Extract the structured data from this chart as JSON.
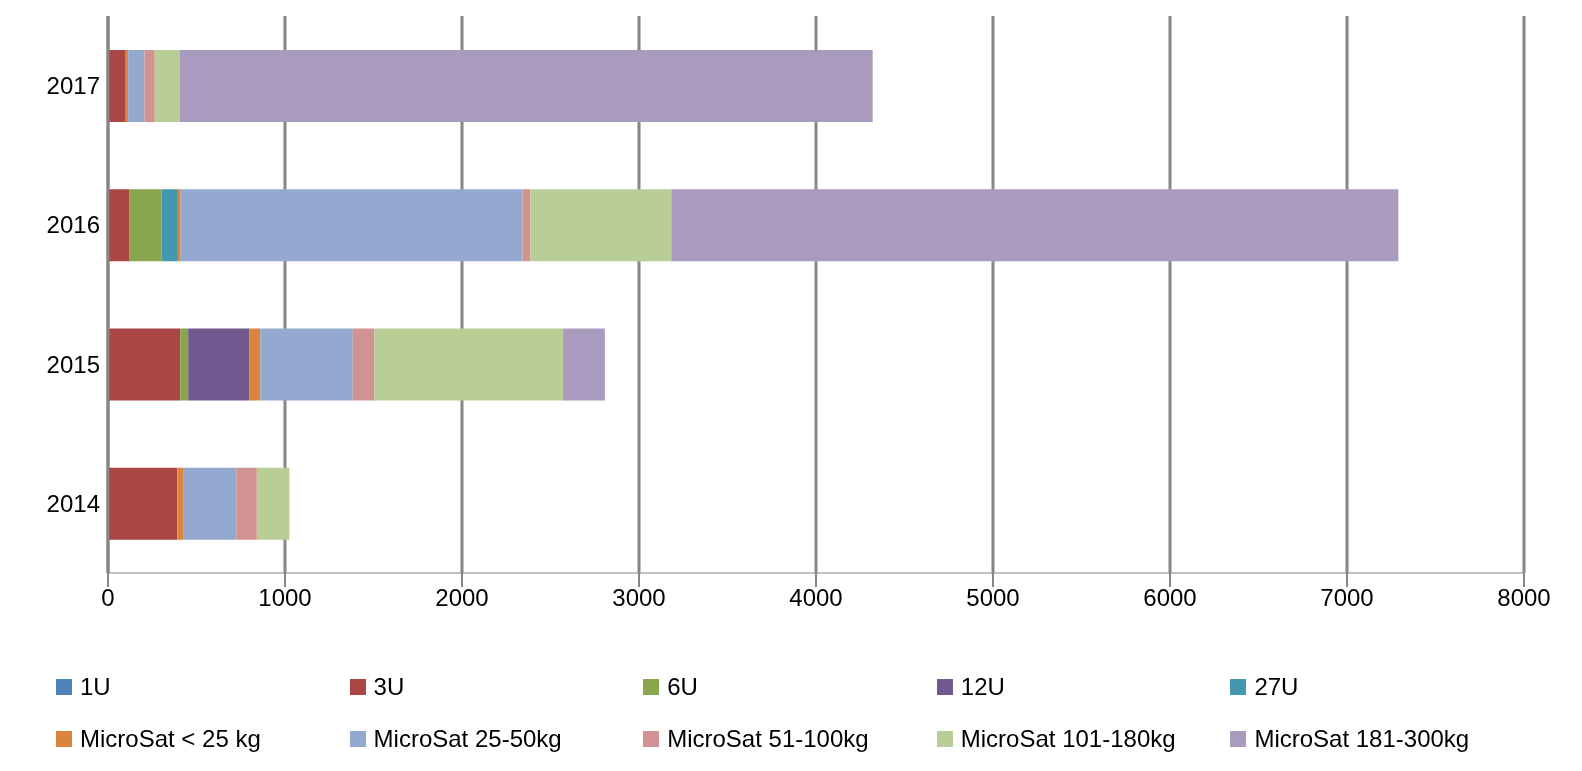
{
  "chart_data": {
    "type": "bar",
    "orientation": "horizontal",
    "stacked": true,
    "categories": [
      "2017",
      "2016",
      "2015",
      "2014"
    ],
    "series": [
      {
        "name": "1U",
        "color": "#4f81bd",
        "values": [
          null,
          null,
          null,
          null
        ]
      },
      {
        "name": "3U",
        "color": "#aa4643",
        "values": [
          100,
          122,
          408,
          392
        ]
      },
      {
        "name": "6U",
        "color": "#89a54e",
        "values": [
          null,
          181,
          45,
          null
        ]
      },
      {
        "name": "12U",
        "color": "#71588f",
        "values": [
          null,
          null,
          347,
          null
        ]
      },
      {
        "name": "27U",
        "color": "#4198af",
        "values": [
          null,
          92,
          null,
          null
        ]
      },
      {
        "name": "MicroSat < 25 kg",
        "color": "#db843d",
        "values": [
          14,
          15,
          60,
          32
        ]
      },
      {
        "name": "MicroSat 25-50kg",
        "color": "#93a9cf",
        "values": [
          92,
          1932,
          523,
          301
        ]
      },
      {
        "name": "MicroSat 51-100kg",
        "color": "#d19392",
        "values": [
          58,
          45,
          122,
          116
        ]
      },
      {
        "name": "MicroSat 101-180kg",
        "color": "#b9cd96",
        "values": [
          140,
          795,
          1066,
          184
        ]
      },
      {
        "name": "MicroSat 181-300kg",
        "color": "#a99bbd",
        "values": [
          3916,
          4108,
          236,
          null
        ]
      }
    ],
    "xlim": [
      0,
      8000
    ],
    "xticks": [
      0,
      1000,
      2000,
      3000,
      4000,
      5000,
      6000,
      7000,
      8000
    ],
    "grid": "x",
    "legend": "bottom"
  }
}
